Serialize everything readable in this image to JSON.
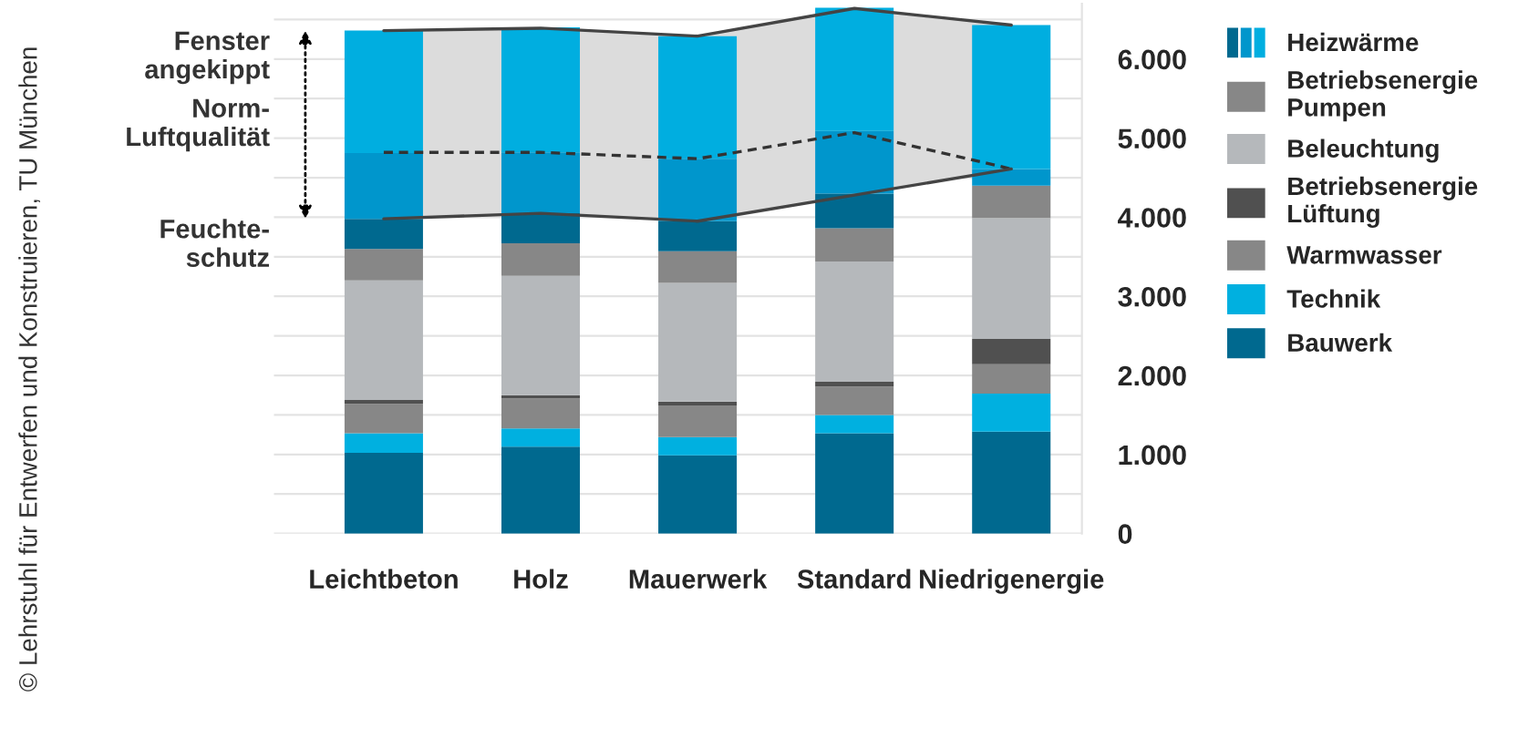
{
  "chart_data": {
    "type": "bar",
    "stacked": true,
    "categories": [
      "Leichtbeton",
      "Holz",
      "Mauerwerk",
      "Standard",
      "Niedrigenergie"
    ],
    "series": [
      {
        "name": "Bauwerk",
        "color": "#00698f",
        "values": [
          1020,
          1100,
          990,
          1270,
          1290
        ]
      },
      {
        "name": "Technik",
        "color": "#00b0e0",
        "values": [
          250,
          230,
          230,
          230,
          480
        ]
      },
      {
        "name": "Warmwasser",
        "color": "#878787",
        "values": [
          370,
          380,
          400,
          360,
          370
        ]
      },
      {
        "name": "Betriebsenergie\nLüftung",
        "color": "#505050",
        "values": [
          50,
          40,
          50,
          60,
          320
        ]
      },
      {
        "name": "Beleuchtung",
        "color": "#b5b8bb",
        "values": [
          1510,
          1510,
          1500,
          1520,
          1530
        ]
      },
      {
        "name": "Betriebsenergie\nPumpen",
        "color": "#878787",
        "values": [
          400,
          410,
          400,
          420,
          410
        ]
      },
      {
        "color": "#00698f",
        "values": [
          380,
          380,
          380,
          440,
          0
        ]
      },
      {
        "color": "#0096cc",
        "values": [
          830,
          770,
          790,
          790,
          210
        ]
      },
      {
        "name": "Heizwärme",
        "color": "#00aee0",
        "values": [
          1550,
          1580,
          1550,
          1560,
          1820
        ]
      },
      {
        "type": "line",
        "line_style": "dashed",
        "color": "#333333",
        "values": [
          4820,
          4820,
          4740,
          5070,
          4610
        ],
        "lower": [
          3980,
          4050,
          3950,
          4280,
          4610
        ],
        "upper": [
          6360,
          6390,
          6290,
          6640,
          6430
        ]
      },
      {
        "type": "line",
        "line_style": "solid",
        "color": "#444444",
        "values": [
          6360,
          6390,
          6290,
          6640,
          6430
        ]
      },
      {
        "type": "line",
        "line_style": "solid",
        "color": "#444444",
        "values": [
          3980,
          4050,
          3950,
          4280,
          4610
        ]
      }
    ],
    "ylim": [
      0,
      6700
    ],
    "yticks": [
      0,
      {
        "value": 500,
        "label": null
      },
      {
        "value": 1000,
        "label": "1.000"
      },
      {
        "value": 1500,
        "label": null
      },
      {
        "value": 2000,
        "label": "2.000"
      },
      {
        "value": 2500,
        "label": null
      },
      {
        "value": 3000,
        "label": "3.000"
      },
      {
        "value": 3500,
        "label": null
      },
      {
        "value": 4000,
        "label": "4.000"
      },
      {
        "value": 4500,
        "label": null
      },
      {
        "value": 5000,
        "label": "5.000"
      },
      {
        "value": 5500,
        "label": null
      },
      {
        "value": 6000,
        "label": "6.000"
      },
      {
        "value": 6500,
        "label": null
      }
    ],
    "grid": "y",
    "legend": "right",
    "annotations": [
      "Fenster\nangekippt",
      "Norm-\nLuftqualität",
      "Feuchte-\nschutz",
      "© Lehrstuhl für Entwerfen und Konstruieren, TU München"
    ]
  }
}
